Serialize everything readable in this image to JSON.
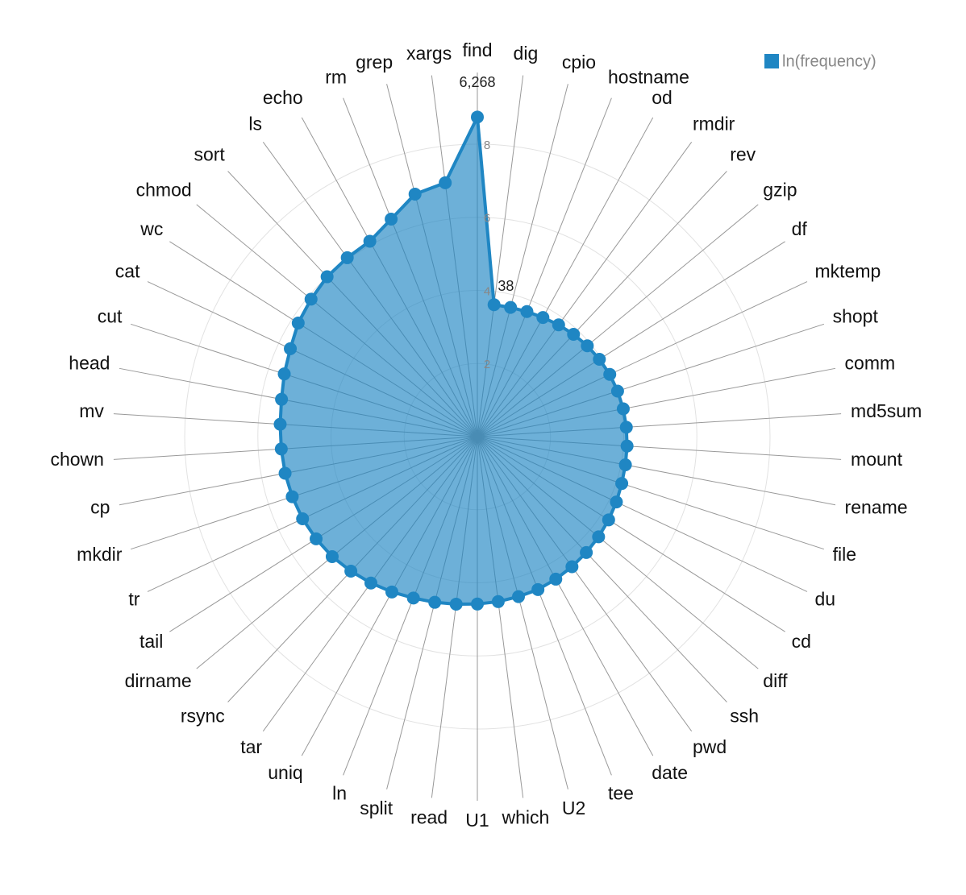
{
  "chart_data": {
    "type": "radar",
    "categories": [
      "find",
      "dig",
      "cpio",
      "hostname",
      "od",
      "rmdir",
      "rev",
      "gzip",
      "df",
      "mktemp",
      "shopt",
      "comm",
      "md5sum",
      "mount",
      "rename",
      "file",
      "du",
      "cd",
      "diff",
      "ssh",
      "pwd",
      "date",
      "tee",
      "U2",
      "which",
      "U1",
      "read",
      "split",
      "ln",
      "uniq",
      "tar",
      "rsync",
      "dirname",
      "tail",
      "tr",
      "mkdir",
      "cp",
      "chown",
      "mv",
      "head",
      "cut",
      "cat",
      "wc",
      "chmod",
      "sort",
      "ls",
      "echo",
      "rm",
      "grep",
      "xargs"
    ],
    "series": [
      {
        "name": "ln(frequency)",
        "color": "#1f86c3",
        "values": [
          8.743,
          3.638,
          3.65,
          3.68,
          3.72,
          3.78,
          3.84,
          3.9,
          3.95,
          4.0,
          4.03,
          4.06,
          4.08,
          4.1,
          4.12,
          4.15,
          4.2,
          4.25,
          4.3,
          4.35,
          4.4,
          4.45,
          4.5,
          4.52,
          4.55,
          4.58,
          4.62,
          4.68,
          4.75,
          4.85,
          4.95,
          5.05,
          5.15,
          5.22,
          5.28,
          5.32,
          5.35,
          5.37,
          5.4,
          5.45,
          5.55,
          5.65,
          5.8,
          5.9,
          6.0,
          6.05,
          6.1,
          6.4,
          6.85,
          7.0
        ],
        "value_labels": [
          "6,268",
          "38",
          null,
          null,
          null,
          null,
          null,
          null,
          null,
          null,
          null,
          null,
          null,
          null,
          null,
          null,
          null,
          null,
          null,
          null,
          null,
          null,
          null,
          null,
          null,
          null,
          null,
          null,
          null,
          null,
          null,
          null,
          null,
          null,
          null,
          null,
          null,
          null,
          null,
          null,
          null,
          null,
          null,
          null,
          null,
          null,
          null,
          null,
          null,
          null
        ]
      }
    ],
    "rlim": [
      0,
      8.75
    ],
    "rticks": [
      2,
      4,
      6,
      8
    ],
    "grid": true,
    "legend": "top-right"
  }
}
